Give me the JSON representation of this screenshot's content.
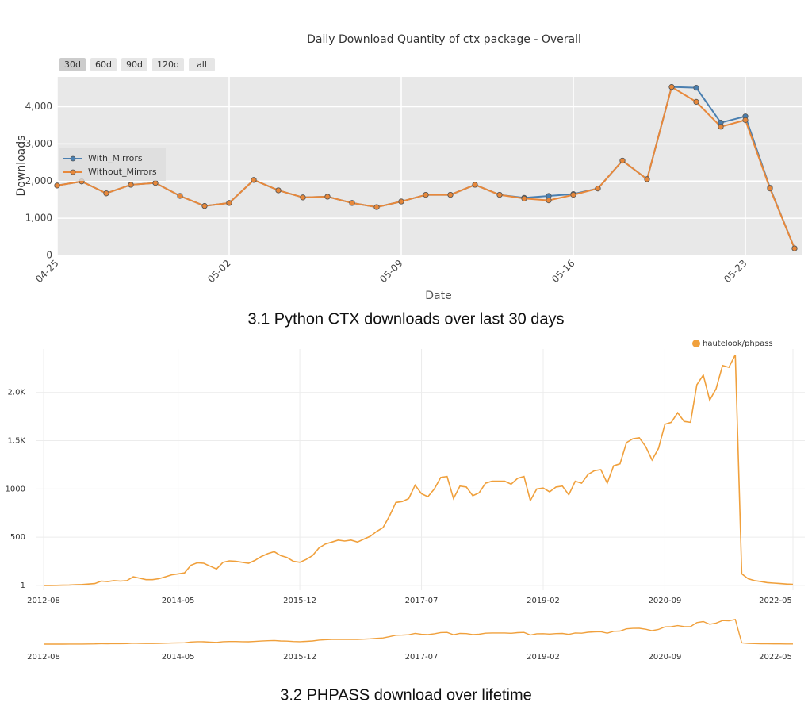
{
  "captions": [
    "3.1 Python CTX downloads over last 30 days",
    "3.2 PHPASS download over lifetime"
  ],
  "chart_data": [
    {
      "type": "line",
      "title": "Daily Download Quantity of ctx package - Overall",
      "range_buttons": [
        "30d",
        "60d",
        "90d",
        "120d",
        "all"
      ],
      "x_label": "Date",
      "y_label": "Downloads",
      "categories": [
        "04-25",
        null,
        null,
        null,
        null,
        null,
        null,
        "05-02",
        null,
        null,
        null,
        null,
        null,
        null,
        "05-09",
        null,
        null,
        null,
        null,
        null,
        null,
        "05-16",
        null,
        null,
        null,
        null,
        null,
        null,
        "05-23",
        null,
        null
      ],
      "series": [
        {
          "name": "With_Mirrors",
          "color": "#4a7fb0",
          "values": [
            1880,
            1990,
            1670,
            1900,
            1950,
            1600,
            1330,
            1410,
            2030,
            1750,
            1560,
            1580,
            1410,
            1300,
            1450,
            1630,
            1630,
            1900,
            1630,
            1550,
            1600,
            1650,
            1800,
            2550,
            2050,
            4530,
            4510,
            3570,
            3740,
            1820,
            190
          ]
        },
        {
          "name": "Without_Mirrors",
          "color": "#e8883a",
          "values": [
            1880,
            1990,
            1670,
            1900,
            1950,
            1600,
            1330,
            1410,
            2030,
            1750,
            1560,
            1580,
            1410,
            1300,
            1450,
            1630,
            1630,
            1900,
            1630,
            1530,
            1480,
            1630,
            1800,
            2550,
            2050,
            4530,
            4130,
            3460,
            3640,
            1800,
            190
          ]
        }
      ],
      "ylim": [
        0,
        4800
      ],
      "yticks": [
        0,
        {
          "value": 1000,
          "label": "1,000"
        },
        {
          "value": 2000,
          "label": "2,000"
        },
        {
          "value": 3000,
          "label": "3,000"
        },
        {
          "value": 4000,
          "label": "4,000"
        }
      ],
      "grid": true,
      "legend": "left"
    },
    {
      "type": "time-line",
      "x": [
        "2012-08",
        "2012-09",
        "2012-10",
        "2012-11",
        "2012-12",
        "2013-01",
        "2013-02",
        "2013-03",
        "2013-04",
        "2013-05",
        "2013-06",
        "2013-07",
        "2013-08",
        "2013-09",
        "2013-10",
        "2013-11",
        "2013-12",
        "2014-01",
        "2014-02",
        "2014-03",
        "2014-04",
        "2014-05",
        "2014-06",
        "2014-07",
        "2014-08",
        "2014-09",
        "2014-10",
        "2014-11",
        "2014-12",
        "2015-01",
        "2015-02",
        "2015-03",
        "2015-04",
        "2015-05",
        "2015-06",
        "2015-07",
        "2015-08",
        "2015-09",
        "2015-10",
        "2015-11",
        "2015-12",
        "2016-01",
        "2016-02",
        "2016-03",
        "2016-04",
        "2016-05",
        "2016-06",
        "2016-07",
        "2016-08",
        "2016-09",
        "2016-10",
        "2016-11",
        "2016-12",
        "2017-01",
        "2017-02",
        "2017-03",
        "2017-04",
        "2017-05",
        "2017-06",
        "2017-07",
        "2017-08",
        "2017-09",
        "2017-10",
        "2017-11",
        "2017-12",
        "2018-01",
        "2018-02",
        "2018-03",
        "2018-04",
        "2018-05",
        "2018-06",
        "2018-07",
        "2018-08",
        "2018-09",
        "2018-10",
        "2018-11",
        "2018-12",
        "2019-01",
        "2019-02",
        "2019-03",
        "2019-04",
        "2019-05",
        "2019-06",
        "2019-07",
        "2019-08",
        "2019-09",
        "2019-10",
        "2019-11",
        "2019-12",
        "2020-01",
        "2020-02",
        "2020-03",
        "2020-04",
        "2020-05",
        "2020-06",
        "2020-07",
        "2020-08",
        "2020-09",
        "2020-10",
        "2020-11",
        "2020-12",
        "2021-01",
        "2021-02",
        "2021-03",
        "2021-04",
        "2021-05",
        "2021-06",
        "2021-07",
        "2021-08",
        "2021-09",
        "2021-10",
        "2021-11",
        "2021-12",
        "2022-01",
        "2022-02",
        "2022-03",
        "2022-04",
        "2022-05"
      ],
      "series": [
        {
          "name": "hautelook/phpass",
          "color": "#f0a03c",
          "values": [
            1,
            1,
            2,
            3,
            5,
            8,
            10,
            15,
            20,
            45,
            40,
            50,
            45,
            50,
            90,
            75,
            60,
            60,
            70,
            90,
            110,
            120,
            130,
            210,
            235,
            230,
            200,
            170,
            240,
            255,
            250,
            240,
            230,
            260,
            300,
            330,
            350,
            310,
            290,
            250,
            240,
            270,
            310,
            390,
            430,
            450,
            470,
            460,
            470,
            450,
            480,
            510,
            560,
            600,
            720,
            860,
            870,
            900,
            1040,
            950,
            920,
            1000,
            1120,
            1130,
            900,
            1030,
            1020,
            930,
            960,
            1060,
            1080,
            1080,
            1080,
            1050,
            1110,
            1130,
            880,
            1000,
            1010,
            970,
            1020,
            1030,
            940,
            1080,
            1060,
            1150,
            1190,
            1200,
            1060,
            1240,
            1260,
            1480,
            1520,
            1530,
            1440,
            1300,
            1420,
            1670,
            1690,
            1790,
            1700,
            1690,
            2080,
            2180,
            1920,
            2040,
            2280,
            2260,
            2390,
            120,
            70,
            50,
            40,
            30,
            25,
            20,
            15,
            12
          ]
        }
      ],
      "xlim": [
        "2012-08",
        "2022-05"
      ],
      "xticks": [
        "2012-08",
        "2014-05",
        "2015-12",
        "2017-07",
        "2019-02",
        "2020-09",
        "2022-05"
      ],
      "ylim": [
        0,
        2450
      ],
      "yticks": [
        1,
        500,
        1000,
        {
          "value": 1500,
          "label": "1.5K"
        },
        {
          "value": 2000,
          "label": "2.0K"
        }
      ],
      "grid": true,
      "legend": "top-right",
      "navigator": true
    }
  ]
}
